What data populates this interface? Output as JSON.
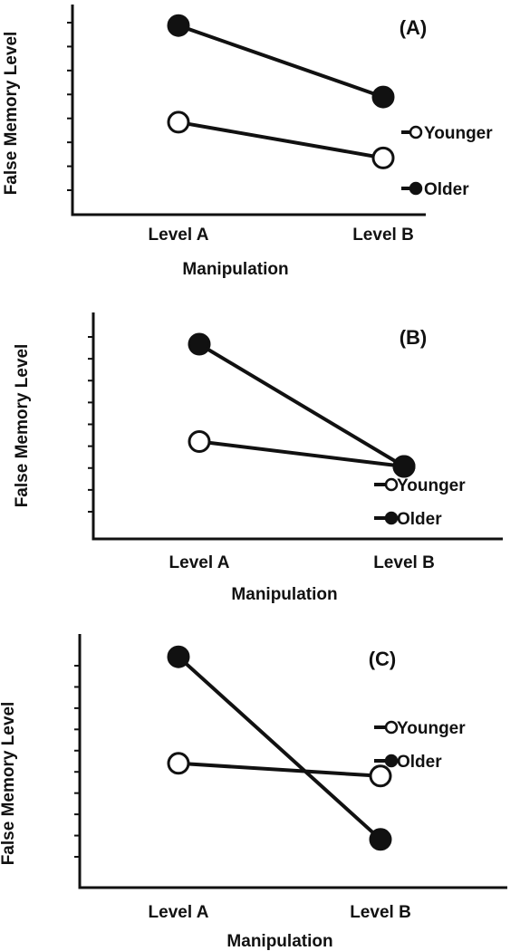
{
  "chart_data": [
    {
      "type": "line",
      "panel_label": "(A)",
      "xlabel": "Manipulation",
      "ylabel": "False Memory Level",
      "categories": [
        "Level A",
        "Level B"
      ],
      "ylim": [
        0,
        10
      ],
      "y_ticks": 8,
      "series": [
        {
          "name": "Younger",
          "marker": "open-circle",
          "values": [
            4.4,
            2.7
          ]
        },
        {
          "name": "Older",
          "marker": "filled-circle",
          "values": [
            9.0,
            5.6
          ]
        }
      ],
      "legend": "right"
    },
    {
      "type": "line",
      "panel_label": "(B)",
      "xlabel": "Manipulation",
      "ylabel": "False Memory Level",
      "categories": [
        "Level A",
        "Level B"
      ],
      "ylim": [
        0,
        10
      ],
      "y_ticks": 9,
      "series": [
        {
          "name": "Younger",
          "marker": "open-circle",
          "values": [
            4.3,
            3.2
          ]
        },
        {
          "name": "Older",
          "marker": "filled-circle",
          "values": [
            8.6,
            3.2
          ]
        }
      ],
      "legend": "bottom-right"
    },
    {
      "type": "line",
      "panel_label": "(C)",
      "xlabel": "Manipulation",
      "ylabel": "False Memory Level",
      "categories": [
        "Level A",
        "Level B"
      ],
      "ylim": [
        0,
        10
      ],
      "y_ticks": 10,
      "series": [
        {
          "name": "Younger",
          "marker": "open-circle",
          "values": [
            4.9,
            4.4
          ]
        },
        {
          "name": "Older",
          "marker": "filled-circle",
          "values": [
            9.1,
            1.9
          ]
        }
      ],
      "legend": "right"
    }
  ]
}
